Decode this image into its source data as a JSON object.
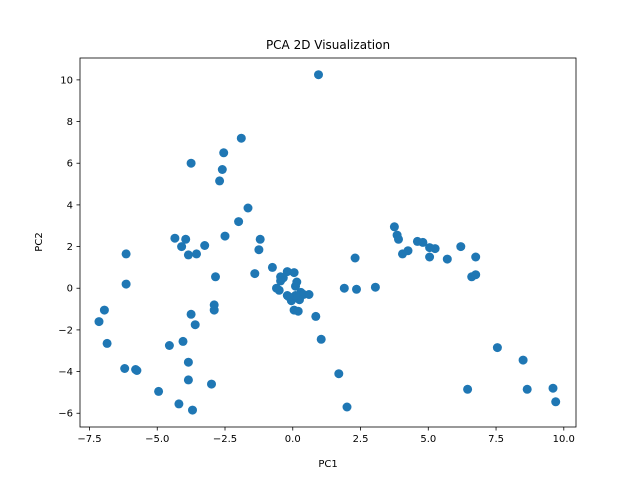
{
  "chart_data": {
    "type": "scatter",
    "title": "PCA 2D Visualization",
    "xlabel": "PC1",
    "ylabel": "PC2",
    "xlim": [
      -7.85,
      10.45
    ],
    "ylim": [
      -6.66,
      11.05
    ],
    "xticks": [
      -7.5,
      -5.0,
      -2.5,
      0.0,
      2.5,
      5.0,
      7.5,
      10.0
    ],
    "xtick_labels": [
      "−7.5",
      "−5.0",
      "−2.5",
      "0.0",
      "2.5",
      "5.0",
      "7.5",
      "10.0"
    ],
    "yticks": [
      -6,
      -4,
      -2,
      0,
      2,
      4,
      6,
      8,
      10
    ],
    "ytick_labels": [
      "−6",
      "−4",
      "−2",
      "0",
      "2",
      "4",
      "6",
      "8",
      "10"
    ],
    "grid": false,
    "color": "#1f77b4",
    "points": [
      [
        0.95,
        10.25
      ],
      [
        -1.9,
        7.2
      ],
      [
        -3.75,
        6.0
      ],
      [
        -2.55,
        6.5
      ],
      [
        -2.6,
        5.7
      ],
      [
        -2.7,
        5.15
      ],
      [
        -1.65,
        3.85
      ],
      [
        -2.0,
        3.2
      ],
      [
        -2.5,
        2.5
      ],
      [
        -1.2,
        2.35
      ],
      [
        -1.25,
        1.85
      ],
      [
        -1.4,
        0.7
      ],
      [
        -3.95,
        2.35
      ],
      [
        -4.35,
        2.4
      ],
      [
        -4.1,
        2.0
      ],
      [
        -3.25,
        2.05
      ],
      [
        -3.85,
        1.6
      ],
      [
        -3.55,
        1.65
      ],
      [
        -2.85,
        0.55
      ],
      [
        -6.15,
        1.65
      ],
      [
        -6.15,
        0.2
      ],
      [
        -2.9,
        -0.8
      ],
      [
        -2.9,
        -1.05
      ],
      [
        -6.95,
        -1.05
      ],
      [
        -7.15,
        -1.6
      ],
      [
        -6.85,
        -2.65
      ],
      [
        -3.75,
        -1.25
      ],
      [
        -3.6,
        -1.75
      ],
      [
        -4.05,
        -2.55
      ],
      [
        -4.55,
        -2.75
      ],
      [
        -3.85,
        -3.55
      ],
      [
        -6.2,
        -3.85
      ],
      [
        -5.8,
        -3.9
      ],
      [
        -5.75,
        -3.95
      ],
      [
        -3.85,
        -4.4
      ],
      [
        -3.0,
        -4.6
      ],
      [
        -4.95,
        -4.95
      ],
      [
        -4.2,
        -5.55
      ],
      [
        -3.7,
        -5.85
      ],
      [
        -0.75,
        1.0
      ],
      [
        -0.45,
        0.55
      ],
      [
        -0.2,
        0.8
      ],
      [
        0.05,
        0.75
      ],
      [
        -0.35,
        0.5
      ],
      [
        0.15,
        0.3
      ],
      [
        0.1,
        0.1
      ],
      [
        -0.45,
        0.35
      ],
      [
        -0.6,
        0.0
      ],
      [
        -0.5,
        -0.1
      ],
      [
        -0.2,
        -0.35
      ],
      [
        0.3,
        -0.2
      ],
      [
        0.4,
        -0.3
      ],
      [
        0.6,
        -0.3
      ],
      [
        0.15,
        -0.45
      ],
      [
        0.25,
        -0.55
      ],
      [
        -0.05,
        -0.6
      ],
      [
        0.05,
        -1.05
      ],
      [
        0.2,
        -1.1
      ],
      [
        0.85,
        -1.35
      ],
      [
        0.1,
        -0.35
      ],
      [
        -0.15,
        -0.4
      ],
      [
        1.05,
        -2.45
      ],
      [
        1.7,
        -4.1
      ],
      [
        2.0,
        -5.7
      ],
      [
        1.9,
        0.0
      ],
      [
        2.3,
        1.45
      ],
      [
        2.35,
        -0.05
      ],
      [
        3.05,
        0.05
      ],
      [
        3.75,
        2.95
      ],
      [
        3.85,
        2.55
      ],
      [
        3.9,
        2.35
      ],
      [
        4.05,
        1.65
      ],
      [
        4.25,
        1.8
      ],
      [
        4.6,
        2.25
      ],
      [
        4.8,
        2.2
      ],
      [
        5.05,
        1.95
      ],
      [
        5.05,
        1.5
      ],
      [
        5.25,
        1.9
      ],
      [
        5.7,
        1.4
      ],
      [
        6.2,
        2.0
      ],
      [
        6.75,
        1.5
      ],
      [
        6.6,
        0.55
      ],
      [
        6.75,
        0.65
      ],
      [
        7.55,
        -2.85
      ],
      [
        8.5,
        -3.45
      ],
      [
        8.65,
        -4.85
      ],
      [
        6.45,
        -4.85
      ],
      [
        9.6,
        -4.8
      ],
      [
        9.7,
        -5.45
      ]
    ]
  }
}
